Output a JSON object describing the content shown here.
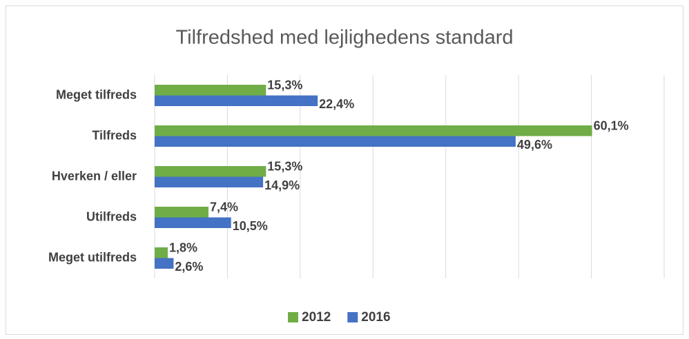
{
  "chart_data": {
    "type": "bar",
    "orientation": "horizontal",
    "title": "Tilfredshed med lejlighedens standard",
    "categories": [
      "Meget tilfreds",
      "Tilfreds",
      "Hverken / eller",
      "Utilfreds",
      "Meget utilfreds"
    ],
    "series": [
      {
        "name": "2012",
        "color": "#70ad47",
        "values": [
          15.3,
          60.1,
          15.3,
          7.4,
          1.8
        ],
        "value_labels": [
          "15,3%",
          "60,1%",
          "15,3%",
          "7,4%",
          "1,8%"
        ]
      },
      {
        "name": "2016",
        "color": "#4472c4",
        "values": [
          22.4,
          49.6,
          14.9,
          10.5,
          2.6
        ],
        "value_labels": [
          "22,4%",
          "49,6%",
          "14,9%",
          "10,5%",
          "2,6%"
        ]
      }
    ],
    "xlim": [
      0,
      70
    ],
    "xticks": [
      0,
      10,
      20,
      30,
      40,
      50,
      60,
      70
    ],
    "grid": true,
    "legend": "bottom"
  }
}
